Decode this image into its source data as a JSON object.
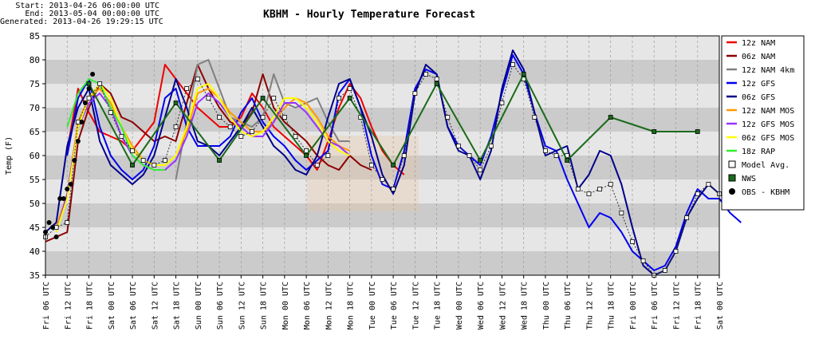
{
  "header": {
    "start_label": "Start:",
    "start": "2013-04-26 06:00:00 UTC",
    "end_label": "End:",
    "end": "2013-05-04 00:00:00 UTC",
    "generated_label": "Generated:",
    "generated": "2013-04-26 19:29:15 UTC"
  },
  "chart_data": {
    "type": "line",
    "title": "KBHM - Hourly Temperature Forecast",
    "ylabel": "Temp (F)",
    "ylim": [
      35,
      85
    ],
    "yticks": [
      35,
      40,
      45,
      50,
      55,
      60,
      65,
      70,
      75,
      80,
      85
    ],
    "x_domain": [
      "Fri 06 UTC",
      "Sat 00 UTC"
    ],
    "xticks": [
      "Fri 06 UTC",
      "Fri 12 UTC",
      "Fri 18 UTC",
      "Sat 00 UTC",
      "Sat 06 UTC",
      "Sat 12 UTC",
      "Sat 18 UTC",
      "Sun 00 UTC",
      "Sun 06 UTC",
      "Sun 12 UTC",
      "Sun 18 UTC",
      "Mon 00 UTC",
      "Mon 06 UTC",
      "Mon 12 UTC",
      "Mon 18 UTC",
      "Tue 00 UTC",
      "Tue 06 UTC",
      "Tue 12 UTC",
      "Tue 18 UTC",
      "Wed 00 UTC",
      "Wed 06 UTC",
      "Wed 12 UTC",
      "Wed 18 UTC",
      "Thu 00 UTC",
      "Thu 06 UTC",
      "Thu 12 UTC",
      "Thu 18 UTC",
      "Fri 00 UTC",
      "Fri 06 UTC",
      "Fri 12 UTC",
      "Fri 18 UTC",
      "Sat 00 UTC"
    ],
    "grid": true,
    "legend_position": "right",
    "series": [
      {
        "name": "12z NAM",
        "color": "#ee0000",
        "style": "line",
        "x": [
          6,
          9,
          12,
          15,
          18,
          21,
          24,
          27,
          30,
          33,
          36,
          39,
          42,
          45,
          48,
          51,
          54,
          57,
          60,
          63,
          66,
          69,
          72,
          75,
          78,
          81,
          84,
          87,
          90,
          93,
          96,
          99
        ],
        "y": [
          61,
          74,
          69,
          65,
          64,
          63,
          61,
          64,
          67,
          79,
          76,
          73,
          70,
          68,
          66,
          66,
          68,
          73,
          70,
          66,
          64,
          62,
          60,
          57,
          63,
          70,
          75,
          72,
          66,
          61,
          58,
          56
        ]
      },
      {
        "name": "06z NAM",
        "color": "#8b0000",
        "style": "line",
        "x": [
          0,
          3,
          6,
          9,
          12,
          15,
          18,
          21,
          24,
          27,
          30,
          33,
          36,
          39,
          42,
          45,
          48,
          51,
          54,
          57,
          60,
          63,
          66,
          69,
          72,
          75,
          78,
          81,
          84,
          87,
          90
        ],
        "y": [
          42,
          43,
          44,
          63,
          70,
          75,
          73,
          68,
          67,
          65,
          63,
          64,
          63,
          71,
          79,
          74,
          70,
          67,
          66,
          69,
          77,
          70,
          67,
          65,
          63,
          60,
          58,
          57,
          60,
          58,
          57
        ]
      },
      {
        "name": "12z NAM 4km",
        "color": "#808080",
        "style": "line",
        "x": [
          36,
          39,
          42,
          45,
          48,
          51,
          54,
          57,
          60,
          63,
          66,
          69,
          72,
          75,
          78,
          81,
          84
        ],
        "y": [
          55,
          67,
          79,
          80,
          74,
          68,
          67,
          66,
          68,
          77,
          71,
          70,
          71,
          72,
          67,
          63,
          63
        ]
      },
      {
        "name": "12z GFS",
        "color": "#0000ee",
        "style": "line",
        "x": [
          6,
          9,
          12,
          15,
          18,
          21,
          24,
          27,
          30,
          33,
          36,
          39,
          42,
          45,
          48,
          51,
          54,
          57,
          60,
          63,
          66,
          69,
          72,
          75,
          78,
          81,
          84,
          87,
          90,
          93,
          96,
          99,
          102,
          105,
          108,
          111,
          114,
          117,
          120,
          123,
          126,
          129,
          132,
          135,
          138,
          141,
          144,
          147,
          150,
          153,
          156,
          159,
          162,
          165,
          168,
          171,
          174,
          177,
          180,
          183,
          186,
          189,
          192
        ],
        "y": [
          60,
          72,
          76,
          66,
          60,
          57,
          55,
          57,
          62,
          72,
          74,
          66,
          62,
          62,
          62,
          64,
          69,
          72,
          67,
          64,
          62,
          59,
          57,
          59,
          61,
          73,
          76,
          70,
          60,
          54,
          53,
          61,
          74,
          78,
          77,
          66,
          62,
          60,
          58,
          64,
          73,
          81,
          77,
          69,
          62,
          61,
          55,
          50,
          45,
          48,
          47,
          44,
          40,
          38,
          36,
          37,
          41,
          48,
          53,
          51,
          51,
          48,
          46
        ]
      },
      {
        "name": "06z GFS",
        "color": "#00008b",
        "style": "line",
        "x": [
          0,
          3,
          6,
          9,
          12,
          15,
          18,
          21,
          24,
          27,
          30,
          33,
          36,
          39,
          42,
          45,
          48,
          51,
          54,
          57,
          60,
          63,
          66,
          69,
          72,
          75,
          78,
          81,
          84,
          87,
          90,
          93,
          96,
          99,
          102,
          105,
          108,
          111,
          114,
          117,
          120,
          123,
          126,
          129,
          132,
          135,
          138,
          141,
          144,
          147,
          150,
          153,
          156,
          159,
          162,
          165,
          168,
          171,
          174,
          177,
          180,
          183,
          186
        ],
        "y": [
          44,
          46,
          62,
          70,
          74,
          63,
          58,
          56,
          54,
          56,
          60,
          68,
          76,
          70,
          63,
          62,
          60,
          63,
          66,
          70,
          66,
          62,
          60,
          57,
          56,
          60,
          68,
          75,
          76,
          70,
          64,
          56,
          52,
          58,
          73,
          79,
          77,
          66,
          61,
          60,
          55,
          61,
          74,
          82,
          78,
          69,
          60,
          61,
          62,
          53,
          56,
          61,
          60,
          54,
          45,
          37,
          35,
          36,
          40,
          47,
          51,
          54,
          52
        ]
      },
      {
        "name": "12z NAM MOS",
        "color": "#ff9900",
        "style": "line",
        "x": [
          3,
          6,
          9,
          12,
          15,
          18,
          21,
          24,
          27,
          30,
          33,
          36,
          39,
          42,
          45,
          48,
          51,
          54,
          57,
          60,
          63,
          66,
          69,
          72,
          75,
          78,
          81,
          84
        ],
        "y": [
          45,
          52,
          67,
          72,
          74,
          71,
          66,
          62,
          59,
          58,
          58,
          60,
          65,
          73,
          74,
          72,
          69,
          67,
          65,
          65,
          67,
          70,
          72,
          71,
          68,
          64,
          62,
          61
        ]
      },
      {
        "name": "12z GFS MOS",
        "color": "#9933ff",
        "style": "line",
        "x": [
          3,
          6,
          9,
          12,
          15,
          18,
          21,
          24,
          27,
          30,
          33,
          36,
          39,
          42,
          45,
          48,
          51,
          54,
          57,
          60,
          63,
          66,
          69,
          72,
          75,
          78,
          81,
          84
        ],
        "y": [
          44,
          52,
          66,
          71,
          73,
          70,
          64,
          60,
          58,
          57,
          57,
          59,
          64,
          71,
          73,
          71,
          68,
          66,
          64,
          64,
          67,
          71,
          71,
          69,
          66,
          63,
          62,
          60
        ]
      },
      {
        "name": "06z GFS MOS",
        "color": "#ffff00",
        "style": "line",
        "x": [
          3,
          6,
          9,
          12,
          15,
          18,
          21,
          24,
          27,
          30,
          33,
          36,
          39,
          42,
          45,
          48,
          51,
          54,
          57,
          60,
          63,
          66,
          69,
          72,
          75,
          78,
          81,
          84
        ],
        "y": [
          44,
          51,
          66,
          72,
          75,
          72,
          66,
          61,
          59,
          58,
          58,
          60,
          66,
          74,
          75,
          72,
          68,
          65,
          64,
          65,
          68,
          72,
          72,
          70,
          67,
          63,
          61,
          60
        ]
      },
      {
        "name": "18z RAP",
        "color": "#33ee33",
        "style": "line",
        "x": [
          6,
          9,
          12,
          15,
          18,
          21,
          24,
          27,
          30,
          33
        ],
        "y": [
          66,
          73,
          76,
          75,
          70,
          66,
          60,
          58,
          57,
          57
        ]
      },
      {
        "name": "Model Avg.",
        "color": "#ffffff",
        "style": "dotted-squares",
        "x": [
          0,
          3,
          6,
          9,
          12,
          15,
          18,
          21,
          24,
          27,
          30,
          33,
          36,
          39,
          42,
          45,
          48,
          51,
          54,
          57,
          60,
          63,
          66,
          69,
          72,
          75,
          78,
          81,
          84,
          87,
          90,
          93,
          96,
          99,
          102,
          105,
          108,
          111,
          114,
          117,
          120,
          123,
          126,
          129,
          132,
          135,
          138,
          141,
          144,
          147,
          150,
          153,
          156,
          159,
          162,
          165,
          168,
          171,
          174,
          177,
          180,
          183,
          186
        ],
        "y": [
          43,
          45,
          46,
          67,
          72,
          75,
          69,
          64,
          61,
          59,
          58,
          59,
          66,
          74,
          76,
          72,
          68,
          66,
          64,
          65,
          68,
          72,
          68,
          64,
          61,
          58,
          60,
          72,
          74,
          68,
          58,
          55,
          53,
          60,
          73,
          77,
          76,
          68,
          62,
          60,
          57,
          62,
          71,
          79,
          76,
          68,
          61,
          60,
          60,
          53,
          52,
          53,
          54,
          48,
          42,
          38,
          35,
          36,
          40,
          47,
          52,
          54,
          52
        ]
      },
      {
        "name": "NWS",
        "color": "#1a6b1a",
        "style": "line-squares",
        "x": [
          12,
          24,
          36,
          48,
          60,
          72,
          84,
          96,
          108,
          120,
          132,
          144,
          156,
          168,
          180
        ],
        "y": [
          75,
          58,
          71,
          59,
          72,
          60,
          72,
          58,
          75,
          59,
          77,
          59,
          68,
          65,
          65
        ]
      },
      {
        "name": "OBS - KBHM",
        "color": "#000000",
        "style": "dots",
        "x": [
          0,
          1,
          2,
          3,
          4,
          5,
          6,
          7,
          8,
          9,
          10,
          11,
          12,
          13
        ],
        "y": [
          44,
          46,
          45,
          43,
          51,
          51,
          53,
          54,
          59,
          63,
          67,
          71,
          74,
          77
        ]
      }
    ]
  }
}
